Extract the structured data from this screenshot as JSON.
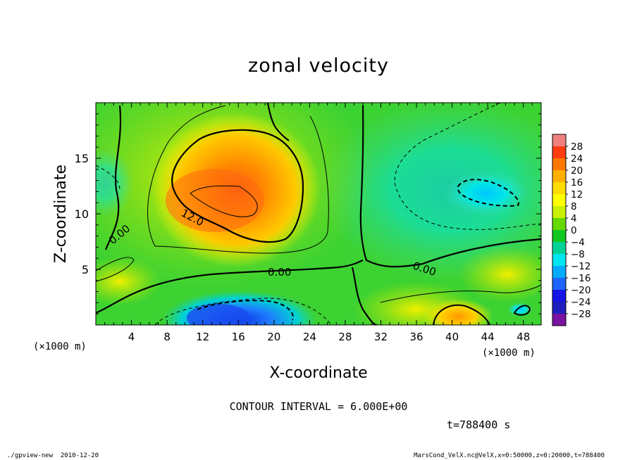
{
  "chart_data": {
    "type": "heatmap",
    "title": "zonal velocity",
    "xlabel": "X-coordinate",
    "ylabel": "Z-coordinate",
    "x_unit": "(×1000 m)",
    "y_unit": "(×1000 m)",
    "xlim": [
      0,
      50
    ],
    "ylim": [
      0,
      20
    ],
    "x_ticks": [
      "4",
      "8",
      "12",
      "16",
      "20",
      "24",
      "28",
      "32",
      "36",
      "40",
      "44",
      "48"
    ],
    "y_ticks": [
      "5",
      "10",
      "15"
    ],
    "colorbar_labels": [
      "28",
      "24",
      "20",
      "16",
      "12",
      "8",
      "4",
      "0",
      "-4",
      "-8",
      "-12",
      "-16",
      "-20",
      "-24",
      "-28"
    ],
    "colorbar_colors": [
      "#f08080",
      "#ff3c10",
      "#ff7800",
      "#ffb000",
      "#ffdc00",
      "#ffff00",
      "#c8f000",
      "#64d800",
      "#10c820",
      "#00d296",
      "#00e6f0",
      "#00aaff",
      "#1e64ff",
      "#1414e6",
      "#1e1ebe",
      "#7814a0"
    ],
    "value_range": [
      -28,
      28
    ],
    "contour_interval": "CONTOUR INTERVAL = 6.000E+00",
    "contour_labels": [
      "0.00",
      "12.0",
      "0.00",
      "0.00"
    ],
    "time_label": "t=788400 s",
    "features": [
      {
        "type": "max",
        "x": 14.5,
        "z": 11.5,
        "value": 21
      },
      {
        "type": "max",
        "x": 41,
        "z": 0.8,
        "value": 15
      },
      {
        "type": "min",
        "x": 17.5,
        "z": 1.8,
        "value": -19
      },
      {
        "type": "min",
        "x": 43.5,
        "z": 12,
        "value": -11
      }
    ]
  },
  "footer": {
    "left": "./gpview-new  2010-12-20",
    "right": "MarsCond_VelX.nc@VelX,x=0:50000,z=0:20000,t=788400"
  }
}
